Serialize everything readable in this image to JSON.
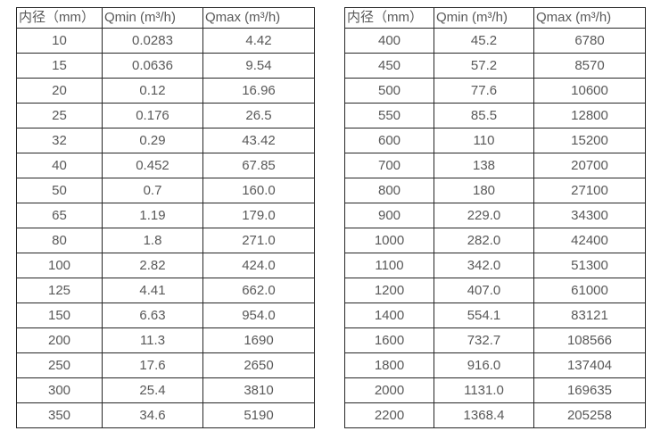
{
  "page": {
    "background_color": "#ffffff",
    "text_color": "#595959",
    "border_color": "#262626"
  },
  "tables": [
    {
      "name": "flow-table-small-diameters",
      "headers": [
        "内径（mm）",
        "Qmin (m³/h)",
        "Qmax (m³/h)"
      ],
      "rows": [
        [
          "10",
          "0.0283",
          "4.42"
        ],
        [
          "15",
          "0.0636",
          "9.54"
        ],
        [
          "20",
          "0.12",
          "16.96"
        ],
        [
          "25",
          "0.176",
          "26.5"
        ],
        [
          "32",
          "0.29",
          "43.42"
        ],
        [
          "40",
          "0.452",
          "67.85"
        ],
        [
          "50",
          "0.7",
          "160.0"
        ],
        [
          "65",
          "1.19",
          "179.0"
        ],
        [
          "80",
          "1.8",
          "271.0"
        ],
        [
          "100",
          "2.82",
          "424.0"
        ],
        [
          "125",
          "4.41",
          "662.0"
        ],
        [
          "150",
          "6.63",
          "954.0"
        ],
        [
          "200",
          "11.3",
          "1690"
        ],
        [
          "250",
          "17.6",
          "2650"
        ],
        [
          "300",
          "25.4",
          "3810"
        ],
        [
          "350",
          "34.6",
          "5190"
        ]
      ]
    },
    {
      "name": "flow-table-large-diameters",
      "headers": [
        "内径（mm）",
        "Qmin (m³/h)",
        "Qmax (m³/h)"
      ],
      "rows": [
        [
          "400",
          "45.2",
          "6780"
        ],
        [
          "450",
          "57.2",
          "8570"
        ],
        [
          "500",
          "77.6",
          "10600"
        ],
        [
          "550",
          "85.5",
          "12800"
        ],
        [
          "600",
          "110",
          "15200"
        ],
        [
          "700",
          "138",
          "20700"
        ],
        [
          "800",
          "180",
          "27100"
        ],
        [
          "900",
          "229.0",
          "34300"
        ],
        [
          "1000",
          "282.0",
          "42400"
        ],
        [
          "1100",
          "342.0",
          "51300"
        ],
        [
          "1200",
          "407.0",
          "61000"
        ],
        [
          "1400",
          "554.1",
          "83121"
        ],
        [
          "1600",
          "732.7",
          "108566"
        ],
        [
          "1800",
          "916.0",
          "137404"
        ],
        [
          "2000",
          "1131.0",
          "169635"
        ],
        [
          "2200",
          "1368.4",
          "205258"
        ]
      ]
    }
  ]
}
